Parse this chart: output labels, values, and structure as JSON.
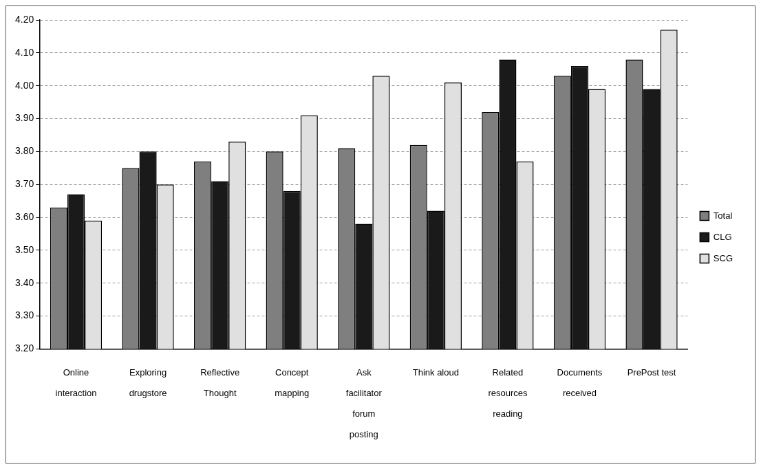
{
  "chart_data": {
    "type": "bar",
    "categories": [
      "Online interaction",
      "Exploring drugstore",
      "Reflective Thought",
      "Concept mapping",
      "Ask facilitator forum posting",
      "Think aloud",
      "Related resources reading",
      "Documents received",
      "PrePost test"
    ],
    "series": [
      {
        "name": "Total",
        "color": "#7f7f7f",
        "values": [
          3.63,
          3.75,
          3.77,
          3.8,
          3.81,
          3.82,
          3.92,
          4.03,
          4.08
        ]
      },
      {
        "name": "CLG",
        "color": "#1a1a1a",
        "values": [
          3.67,
          3.8,
          3.71,
          3.68,
          3.58,
          3.62,
          4.08,
          4.06,
          3.99
        ]
      },
      {
        "name": "SCG",
        "color": "#e0e0e0",
        "values": [
          3.59,
          3.7,
          3.83,
          3.91,
          4.03,
          4.01,
          3.77,
          3.99,
          4.17
        ]
      }
    ],
    "ylim": [
      3.2,
      4.2
    ],
    "yticks": [
      {
        "value": 3.2,
        "label": "3.20"
      },
      {
        "value": 3.3,
        "label": "3.30"
      },
      {
        "value": 3.4,
        "label": "3.40"
      },
      {
        "value": 3.5,
        "label": "3.50"
      },
      {
        "value": 3.6,
        "label": "3.60"
      },
      {
        "value": 3.7,
        "label": "3.70"
      },
      {
        "value": 3.8,
        "label": "3.80"
      },
      {
        "value": 3.9,
        "label": "3.90"
      },
      {
        "value": 4.0,
        "label": "4.00"
      },
      {
        "value": 4.1,
        "label": "4.10"
      },
      {
        "value": 4.2,
        "label": "4.20"
      }
    ],
    "grid": "y",
    "legend": "right"
  }
}
